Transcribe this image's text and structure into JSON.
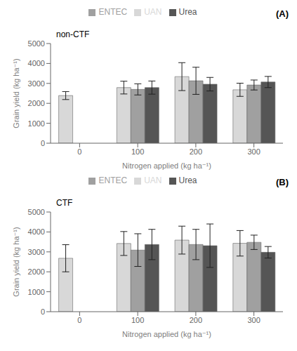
{
  "chart_data": [
    {
      "type": "bar",
      "title": "(A)",
      "annotations": [
        "non-CTF"
      ],
      "xlabel": "Nitrogen applied (kg ha⁻¹)",
      "ylabel": "Grain yield (kg ha⁻¹)",
      "categories": [
        "0",
        "100",
        "200",
        "300"
      ],
      "series": [
        {
          "name": "UAN",
          "color": "#d8d8d8",
          "values": [
            2390,
            2790,
            3340,
            2680
          ],
          "errors": [
            200,
            320,
            700,
            330
          ]
        },
        {
          "name": "ENTEC",
          "color": "#a0a0a0",
          "values": [
            null,
            2700,
            3130,
            2920
          ],
          "errors": [
            null,
            280,
            680,
            250
          ]
        },
        {
          "name": "Urea",
          "color": "#555555",
          "values": [
            null,
            2790,
            2960,
            3070
          ],
          "errors": [
            null,
            330,
            340,
            280
          ]
        }
      ],
      "ylim": [
        0,
        5000
      ],
      "yticks": [
        0,
        1000,
        2000,
        3000,
        4000,
        5000
      ],
      "grid": false,
      "legend": "top"
    },
    {
      "type": "bar",
      "title": "(B)",
      "annotations": [
        "CTF"
      ],
      "xlabel": "Nitrogen applied (kg ha⁻¹)",
      "ylabel": "Grain yield (kg ha⁻¹)",
      "categories": [
        "0",
        "100",
        "200",
        "300"
      ],
      "series": [
        {
          "name": "UAN",
          "color": "#d8d8d8",
          "values": [
            2680,
            3420,
            3590,
            3430
          ],
          "errors": [
            680,
            600,
            700,
            640
          ]
        },
        {
          "name": "ENTEC",
          "color": "#a0a0a0",
          "values": [
            null,
            3090,
            3370,
            3480
          ],
          "errors": [
            null,
            820,
            760,
            360
          ]
        },
        {
          "name": "Urea",
          "color": "#555555",
          "values": [
            null,
            3370,
            3310,
            2980
          ],
          "errors": [
            null,
            760,
            1090,
            290
          ]
        }
      ],
      "ylim": [
        0,
        5000
      ],
      "yticks": [
        0,
        1000,
        2000,
        3000,
        4000,
        5000
      ],
      "grid": false,
      "legend": "top"
    }
  ]
}
